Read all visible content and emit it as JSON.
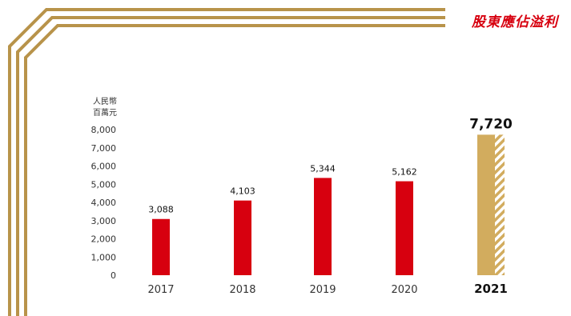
{
  "title": "股東應佔溢利",
  "colors": {
    "bar": "#d7000f",
    "highlight_bar": "#d2ac5e",
    "frame_line": "#b8934a",
    "title": "#d7000f",
    "axis_text": "#333333"
  },
  "chart_data": {
    "type": "bar",
    "title": "股東應佔溢利",
    "ylabel_line1": "人民幣",
    "ylabel_line2": "百萬元",
    "xlabel": "",
    "categories": [
      "2017",
      "2018",
      "2019",
      "2020",
      "2021"
    ],
    "values": [
      3088,
      4103,
      5344,
      5162,
      7720
    ],
    "value_labels": [
      "3,088",
      "4,103",
      "5,344",
      "5,162",
      "7,720"
    ],
    "ylim": [
      0,
      8000
    ],
    "yticks": [
      0,
      1000,
      2000,
      3000,
      4000,
      5000,
      6000,
      7000,
      8000
    ],
    "ytick_labels": [
      "0",
      "1,000",
      "2,000",
      "3,000",
      "4,000",
      "5,000",
      "6,000",
      "7,000",
      "8,000"
    ],
    "highlight_category": "2021",
    "grid": false,
    "legend": "none"
  }
}
